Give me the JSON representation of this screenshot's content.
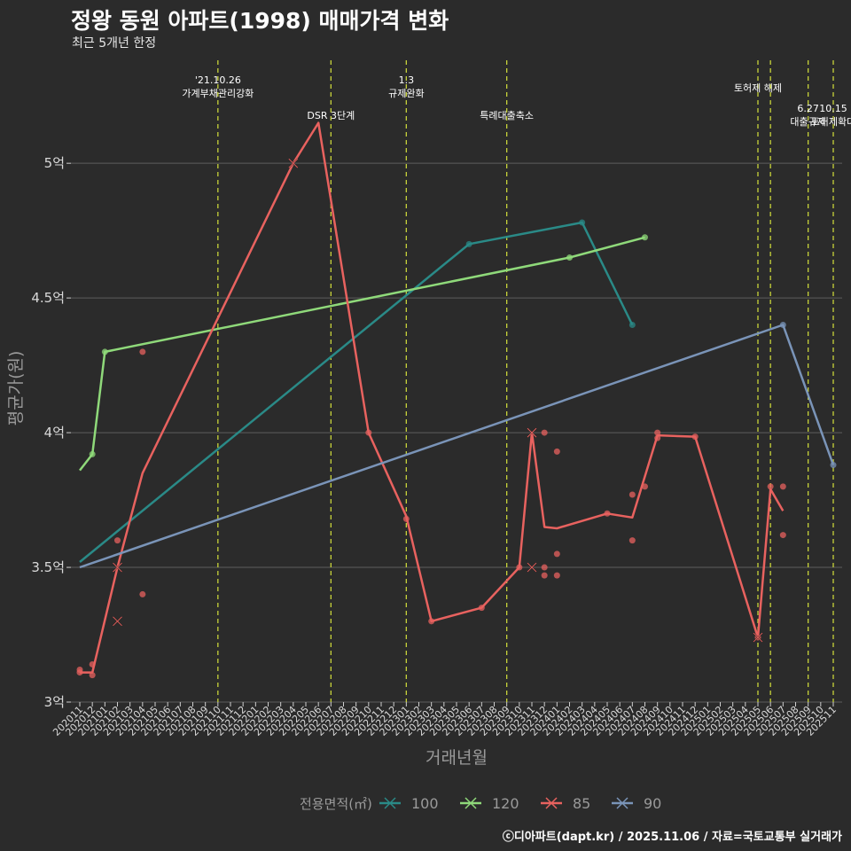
{
  "chart_data": {
    "type": "line",
    "title": "정왕 동원 아파트(1998) 매매가격 변화",
    "subtitle": "최근 5개년 한정",
    "xlabel": "거래년월",
    "ylabel": "평균가(원)",
    "ylim": [
      3.0,
      5.3
    ],
    "y_ticks": [
      {
        "value": 3.0,
        "label": "3억"
      },
      {
        "value": 3.5,
        "label": "3.5억"
      },
      {
        "value": 4.0,
        "label": "4억"
      },
      {
        "value": 4.5,
        "label": "4.5억"
      },
      {
        "value": 5.0,
        "label": "5억"
      }
    ],
    "x_start": "2020-11",
    "x_end": "2025-11",
    "x_ticks": [
      "202011",
      "202012",
      "202101",
      "202102",
      "202103",
      "202104",
      "202105",
      "202106",
      "202107",
      "202108",
      "202109",
      "202110",
      "202111",
      "202112",
      "202201",
      "202202",
      "202203",
      "202204",
      "202205",
      "202206",
      "202207",
      "202208",
      "202209",
      "202210",
      "202211",
      "202212",
      "202301",
      "202302",
      "202303",
      "202304",
      "202305",
      "202306",
      "202307",
      "202308",
      "202309",
      "202310",
      "202311",
      "202312",
      "202401",
      "202402",
      "202403",
      "202404",
      "202405",
      "202406",
      "202407",
      "202408",
      "202409",
      "202410",
      "202411",
      "202412",
      "202501",
      "202502",
      "202503",
      "202504",
      "202505",
      "202506",
      "202507",
      "202508",
      "202509",
      "202510",
      "202511"
    ],
    "grid": true,
    "legend_title": "전용면적(㎡)",
    "legend_position": "bottom",
    "series": [
      {
        "name": "100",
        "color": "#2a8a87",
        "line": [
          [
            "2020-11",
            3.52
          ],
          [
            "2023-06",
            4.7
          ],
          [
            "2024-03",
            4.78
          ],
          [
            "2024-07",
            4.4
          ]
        ],
        "points": [
          [
            "2023-06",
            4.7
          ],
          [
            "2024-03",
            4.78
          ],
          [
            "2024-07",
            4.4
          ]
        ],
        "crosses": []
      },
      {
        "name": "120",
        "color": "#8fd97a",
        "line": [
          [
            "2020-11",
            3.86
          ],
          [
            "2020-12",
            3.92
          ],
          [
            "2021-01",
            4.3
          ],
          [
            "2024-02",
            4.65
          ],
          [
            "2024-08",
            4.725
          ]
        ],
        "points": [
          [
            "2020-12",
            3.92
          ],
          [
            "2021-01",
            4.3
          ],
          [
            "2024-02",
            4.65
          ],
          [
            "2024-08",
            4.725
          ]
        ],
        "crosses": []
      },
      {
        "name": "85",
        "color": "#e8625f",
        "line": [
          [
            "2020-11",
            3.11
          ],
          [
            "2020-12",
            3.11
          ],
          [
            "2021-02",
            3.5
          ],
          [
            "2021-04",
            3.85
          ],
          [
            "2022-04",
            5.0
          ],
          [
            "2022-06",
            5.15
          ],
          [
            "2022-10",
            4.0
          ],
          [
            "2023-01",
            3.69
          ],
          [
            "2023-03",
            3.3
          ],
          [
            "2023-07",
            3.35
          ],
          [
            "2023-10",
            3.5
          ],
          [
            "2023-11",
            4.0
          ],
          [
            "2023-12",
            3.65
          ],
          [
            "2024-01",
            3.645
          ],
          [
            "2024-05",
            3.7
          ],
          [
            "2024-07",
            3.685
          ],
          [
            "2024-09",
            3.99
          ],
          [
            "2024-12",
            3.985
          ],
          [
            "2025-05",
            3.24
          ],
          [
            "2025-06",
            3.79
          ],
          [
            "2025-07",
            3.71
          ]
        ],
        "points": [
          [
            "2020-11",
            3.12
          ],
          [
            "2020-11",
            3.11
          ],
          [
            "2020-12",
            3.14
          ],
          [
            "2020-12",
            3.1
          ],
          [
            "2021-02",
            3.6
          ],
          [
            "2021-04",
            4.3
          ],
          [
            "2021-04",
            3.4
          ],
          [
            "2022-10",
            4.0
          ],
          [
            "2023-01",
            3.68
          ],
          [
            "2023-03",
            3.3
          ],
          [
            "2023-07",
            3.35
          ],
          [
            "2023-10",
            3.5
          ],
          [
            "2023-12",
            4.0
          ],
          [
            "2023-12",
            3.5
          ],
          [
            "2023-12",
            3.47
          ],
          [
            "2024-01",
            3.93
          ],
          [
            "2024-01",
            3.55
          ],
          [
            "2024-01",
            3.47
          ],
          [
            "2024-05",
            3.7
          ],
          [
            "2024-07",
            3.77
          ],
          [
            "2024-07",
            3.6
          ],
          [
            "2024-08",
            3.8
          ],
          [
            "2024-09",
            4.0
          ],
          [
            "2024-09",
            3.98
          ],
          [
            "2024-12",
            3.985
          ],
          [
            "2025-05",
            3.24
          ],
          [
            "2025-06",
            3.8
          ],
          [
            "2025-07",
            3.8
          ],
          [
            "2025-07",
            3.62
          ]
        ],
        "crosses": [
          [
            "2021-02",
            3.5
          ],
          [
            "2021-02",
            3.3
          ],
          [
            "2022-04",
            5.0
          ],
          [
            "2023-11",
            4.0
          ],
          [
            "2023-11",
            3.5
          ],
          [
            "2025-05",
            3.24
          ]
        ]
      },
      {
        "name": "90",
        "color": "#7a94b8",
        "line": [
          [
            "2020-11",
            3.5
          ],
          [
            "2025-07",
            4.4
          ],
          [
            "2025-11",
            3.88
          ]
        ],
        "points": [
          [
            "2025-07",
            4.4
          ],
          [
            "2025-11",
            3.88
          ]
        ],
        "crosses": []
      }
    ],
    "annotations": [
      {
        "month": "2021-10",
        "lines": [
          "'21.10.26",
          "가계부채관리강화"
        ],
        "row": 1
      },
      {
        "month": "2022-07",
        "lines": [
          "DSR 3단계"
        ],
        "row": 3
      },
      {
        "month": "2023-01",
        "lines": [
          "1.3",
          "규제완화"
        ],
        "row": 1
      },
      {
        "month": "2023-09",
        "lines": [
          "특례대출축소"
        ],
        "row": 3
      },
      {
        "month": "2025-05",
        "lines": [
          "토허제 해제"
        ],
        "row": 2
      },
      {
        "month": "2025-06",
        "lines": [],
        "row": 0
      },
      {
        "month": "2025-09",
        "lines": [
          "6.27",
          "대출규제"
        ],
        "row": 4
      },
      {
        "month": "2025-11",
        "lines": [
          "10.15",
          "토허제확대"
        ],
        "row": 4
      }
    ]
  },
  "caption": "ⓒ디아파트(dapt.kr) / 2025.11.06 / 자료=국토교통부 실거래가"
}
